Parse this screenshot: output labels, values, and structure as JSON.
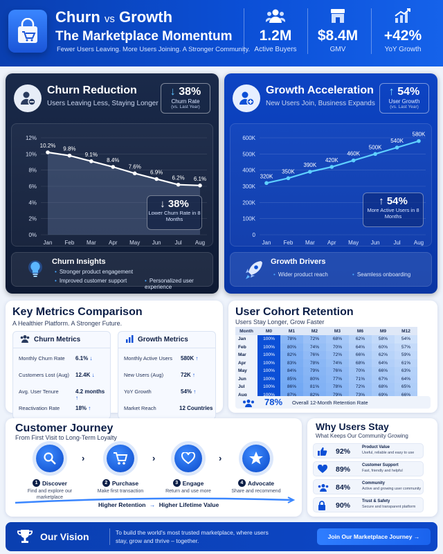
{
  "header": {
    "title_a": "Churn",
    "title_vs": "vs",
    "title_b": "Growth",
    "title_line2": "The Marketplace Momentum",
    "tagline": "Fewer Users Leaving. More Users Joining. A Stronger Community.",
    "stats": [
      {
        "value": "1.2M",
        "label": "Active Buyers",
        "icon": "buyers-icon"
      },
      {
        "value": "$8.4M",
        "label": "GMV",
        "icon": "store-icon"
      },
      {
        "value": "+42%",
        "label": "YoY Growth",
        "icon": "growth-chart-icon"
      }
    ]
  },
  "churn_card": {
    "title": "Churn Reduction",
    "subtitle": "Users Leaving Less, Staying Longer",
    "badge_value": "38%",
    "badge_label": "Churn Rate",
    "badge_sub": "(vs. Last Year)",
    "callout_value": "38%",
    "callout_label": "Lower Churn Rate in 8 Months",
    "insights_title": "Churn Insights",
    "insights": [
      "Stronger product engagement",
      "Improved customer support",
      "Personalized user experience"
    ]
  },
  "growth_card": {
    "title": "Growth Acceleration",
    "subtitle": "New Users Join, Business Expands",
    "badge_value": "54%",
    "badge_label": "User Growth",
    "badge_sub": "(vs. Last Year)",
    "callout_value": "54%",
    "callout_label": "More Active Users in 8 Months",
    "drivers_title": "Growth Drivers",
    "drivers": [
      "Wider product reach",
      "Seamless onboarding"
    ]
  },
  "chart_data": [
    {
      "type": "area",
      "categories": [
        "Jan",
        "Feb",
        "Mar",
        "Apr",
        "May",
        "Jun",
        "Jul",
        "Aug"
      ],
      "values": [
        10.2,
        9.8,
        9.1,
        8.4,
        7.6,
        6.9,
        6.2,
        6.1
      ],
      "value_labels": [
        "10.2%",
        "9.8%",
        "9.1%",
        "8.4%",
        "7.6%",
        "6.9%",
        "6.2%",
        "6.1%"
      ],
      "yticks": [
        "0%",
        "2%",
        "4%",
        "6%",
        "8%",
        "10%",
        "12%"
      ],
      "ylim": [
        0,
        12
      ],
      "grid": true
    },
    {
      "type": "line",
      "categories": [
        "Jan",
        "Feb",
        "Mar",
        "Apr",
        "May",
        "Jun",
        "Jul",
        "Aug"
      ],
      "values": [
        320,
        350,
        390,
        420,
        460,
        500,
        540,
        580
      ],
      "value_labels": [
        "320K",
        "350K",
        "390K",
        "420K",
        "460K",
        "500K",
        "540K",
        "580K"
      ],
      "yticks": [
        "0",
        "100K",
        "200K",
        "300K",
        "400K",
        "500K",
        "600K"
      ],
      "ylim": [
        0,
        600
      ],
      "grid": true
    }
  ],
  "key_metrics": {
    "title": "Key Metrics Comparison",
    "subtitle": "A Healthier Platform. A Stronger Future.",
    "churn_title": "Churn Metrics",
    "churn_rows": [
      {
        "label": "Monthly Churn Rate",
        "value": "6.1%",
        "trend": "↓"
      },
      {
        "label": "Customers Lost (Aug)",
        "value": "12.4K",
        "trend": "↓"
      },
      {
        "label": "Avg. User Tenure",
        "value": "4.2 months",
        "trend": "↑"
      },
      {
        "label": "Reactivation Rate",
        "value": "18%",
        "trend": "↑"
      }
    ],
    "growth_title": "Growth Metrics",
    "growth_rows": [
      {
        "label": "Monthly Active Users",
        "value": "580K",
        "trend": "↑"
      },
      {
        "label": "New Users (Aug)",
        "value": "72K",
        "trend": "↑"
      },
      {
        "label": "YoY Growth",
        "value": "54%",
        "trend": "↑"
      },
      {
        "label": "Market Reach",
        "value": "12 Countries",
        "trend": ""
      }
    ]
  },
  "cohort": {
    "title": "User Cohort Retention",
    "subtitle": "Users Stay Longer, Grow Faster",
    "columns": [
      "Month",
      "M0",
      "M1",
      "M2",
      "M3",
      "M6",
      "M9",
      "M12"
    ],
    "rows": [
      {
        "month": "Jan",
        "values": [
          "100%",
          "78%",
          "72%",
          "68%",
          "62%",
          "58%",
          "54%"
        ]
      },
      {
        "month": "Feb",
        "values": [
          "100%",
          "80%",
          "74%",
          "70%",
          "64%",
          "60%",
          "57%"
        ]
      },
      {
        "month": "Mar",
        "values": [
          "100%",
          "82%",
          "76%",
          "72%",
          "66%",
          "62%",
          "59%"
        ]
      },
      {
        "month": "Apr",
        "values": [
          "100%",
          "83%",
          "78%",
          "74%",
          "68%",
          "64%",
          "61%"
        ]
      },
      {
        "month": "May",
        "values": [
          "100%",
          "84%",
          "79%",
          "76%",
          "70%",
          "66%",
          "63%"
        ]
      },
      {
        "month": "Jun",
        "values": [
          "100%",
          "85%",
          "80%",
          "77%",
          "71%",
          "67%",
          "64%"
        ]
      },
      {
        "month": "Jul",
        "values": [
          "100%",
          "86%",
          "81%",
          "78%",
          "72%",
          "68%",
          "65%"
        ]
      },
      {
        "month": "Aug",
        "values": [
          "100%",
          "87%",
          "82%",
          "79%",
          "73%",
          "69%",
          "66%"
        ]
      }
    ],
    "summary_value": "78%",
    "summary_label": "Overall 12-Month Retention Rate"
  },
  "journey": {
    "title": "Customer Journey",
    "subtitle": "From First Visit to Long-Term Loyalty",
    "steps": [
      {
        "num": "1",
        "name": "Discover",
        "desc": "Find and explore our marketplace",
        "icon": "search-icon"
      },
      {
        "num": "2",
        "name": "Purchase",
        "desc": "Make first transaction",
        "icon": "cart-icon"
      },
      {
        "num": "3",
        "name": "Engage",
        "desc": "Return and use more",
        "icon": "heart-icon"
      },
      {
        "num": "4",
        "name": "Advocate",
        "desc": "Share and recommend",
        "icon": "star-icon"
      }
    ],
    "bottom_a": "Higher Retention",
    "bottom_arrow": "→",
    "bottom_b": "Higher Lifetime Value"
  },
  "why": {
    "title": "Why Users Stay",
    "subtitle": "What Keeps Our Community Growing",
    "items": [
      {
        "pct": "92%",
        "title": "Product Value",
        "desc": "Useful, reliable and easy to use",
        "icon": "thumbs-up-icon"
      },
      {
        "pct": "89%",
        "title": "Customer Support",
        "desc": "Fast, friendly and helpful",
        "icon": "heart-icon"
      },
      {
        "pct": "84%",
        "title": "Community",
        "desc": "Active and growing user community",
        "icon": "community-icon"
      },
      {
        "pct": "90%",
        "title": "Trust & Safety",
        "desc": "Secure and transparent platform",
        "icon": "lock-icon"
      }
    ]
  },
  "footer": {
    "title": "Our Vision",
    "desc": "To build the world's most trusted marketplace, where users stay, grow and thrive – together.",
    "button": "Join Our Marketplace Journey →"
  },
  "colors": {
    "primary": "#0b4fd6",
    "dark": "#0e1a33",
    "accent": "#3fb0ff",
    "text": "#0b1e47"
  }
}
